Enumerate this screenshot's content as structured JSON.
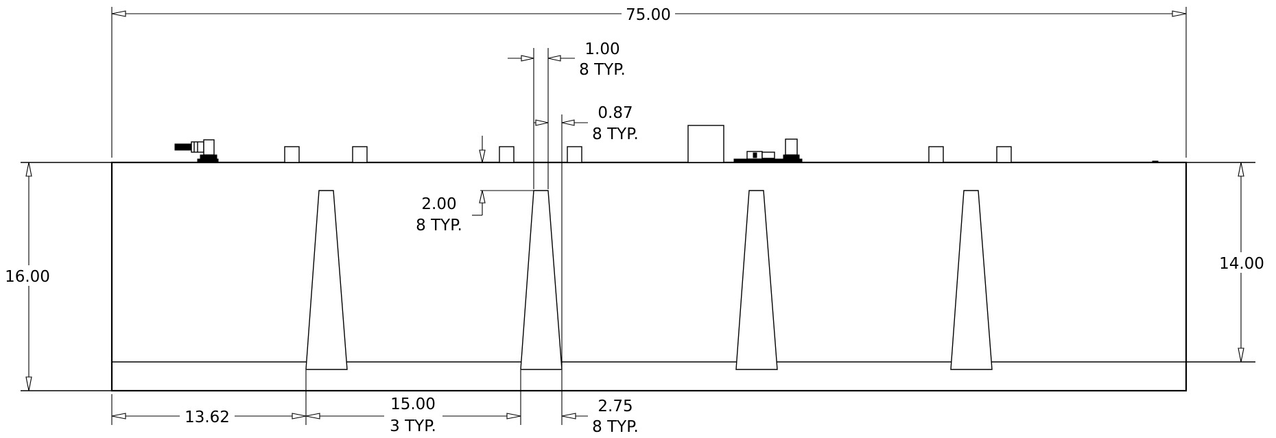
{
  "drawing": {
    "overall_length": "75.00",
    "finger_top_width": "1.00",
    "finger_top_width_note": "8 TYP.",
    "finger_base_offset": "0.87",
    "finger_base_offset_note": "8 TYP.",
    "finger_inset": "2.00",
    "finger_inset_note": "8 TYP.",
    "overall_height": "16.00",
    "inner_height": "14.00",
    "first_offset": "13.62",
    "spacing": "15.00",
    "spacing_note": "3 TYP.",
    "finger_base_width": "2.75",
    "finger_base_width_note": "8 TYP."
  }
}
